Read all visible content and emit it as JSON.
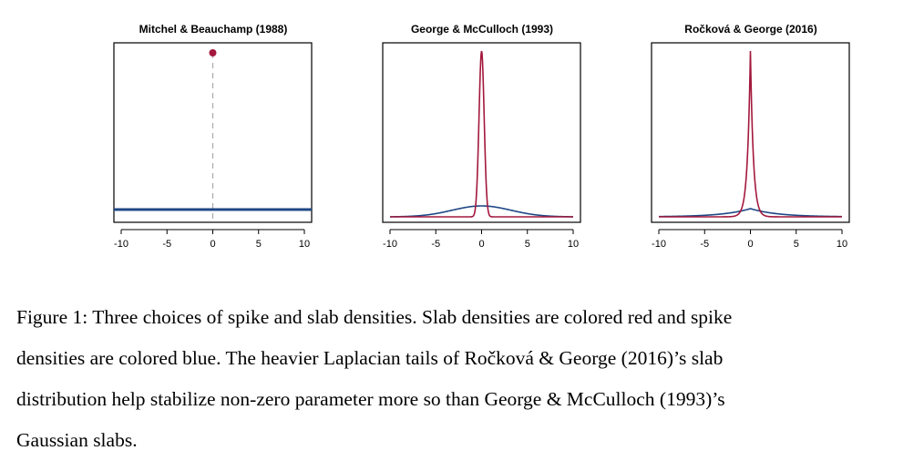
{
  "figure": {
    "colors": {
      "slab": "#a3183c",
      "spike": "#1f4785",
      "guide": "#aaaaaa",
      "frame": "#000000"
    }
  },
  "chart_data": [
    {
      "type": "line",
      "title": "Mitchel & Beauchamp (1988)",
      "xlim": [
        -10,
        10
      ],
      "xticks": [
        "-10",
        "-5",
        "0",
        "5",
        "10"
      ],
      "yaxis_shown": false,
      "series": [
        {
          "kind": "point-mass",
          "x": 0,
          "marker": "dot"
        },
        {
          "kind": "uniform",
          "x": [
            -10,
            10
          ],
          "level": "constant"
        }
      ]
    },
    {
      "type": "line",
      "title": "George & McCulloch (1993)",
      "xlim": [
        -10,
        10
      ],
      "xticks": [
        "-10",
        "-5",
        "0",
        "5",
        "10"
      ],
      "yaxis_shown": false,
      "series": [
        {
          "kind": "gaussian",
          "center": 0,
          "width": "narrow"
        },
        {
          "kind": "gaussian",
          "center": 0,
          "width": "wide"
        }
      ]
    },
    {
      "type": "line",
      "title": "Ročková & George (2016)",
      "xlim": [
        -10,
        10
      ],
      "xticks": [
        "-10",
        "-5",
        "0",
        "5",
        "10"
      ],
      "yaxis_shown": false,
      "series": [
        {
          "kind": "laplace",
          "center": 0,
          "width": "narrow"
        },
        {
          "kind": "laplace",
          "center": 0,
          "width": "wide"
        }
      ]
    }
  ],
  "caption": {
    "lines": [
      "Figure 1: Three choices of spike and slab densities. Slab densities are colored red and spike",
      "densities are colored blue. The heavier Laplacian tails of Ročková & George (2016)’s slab",
      "distribution help stabilize non-zero parameter more so than George & McCulloch (1993)’s",
      "Gaussian slabs."
    ]
  }
}
